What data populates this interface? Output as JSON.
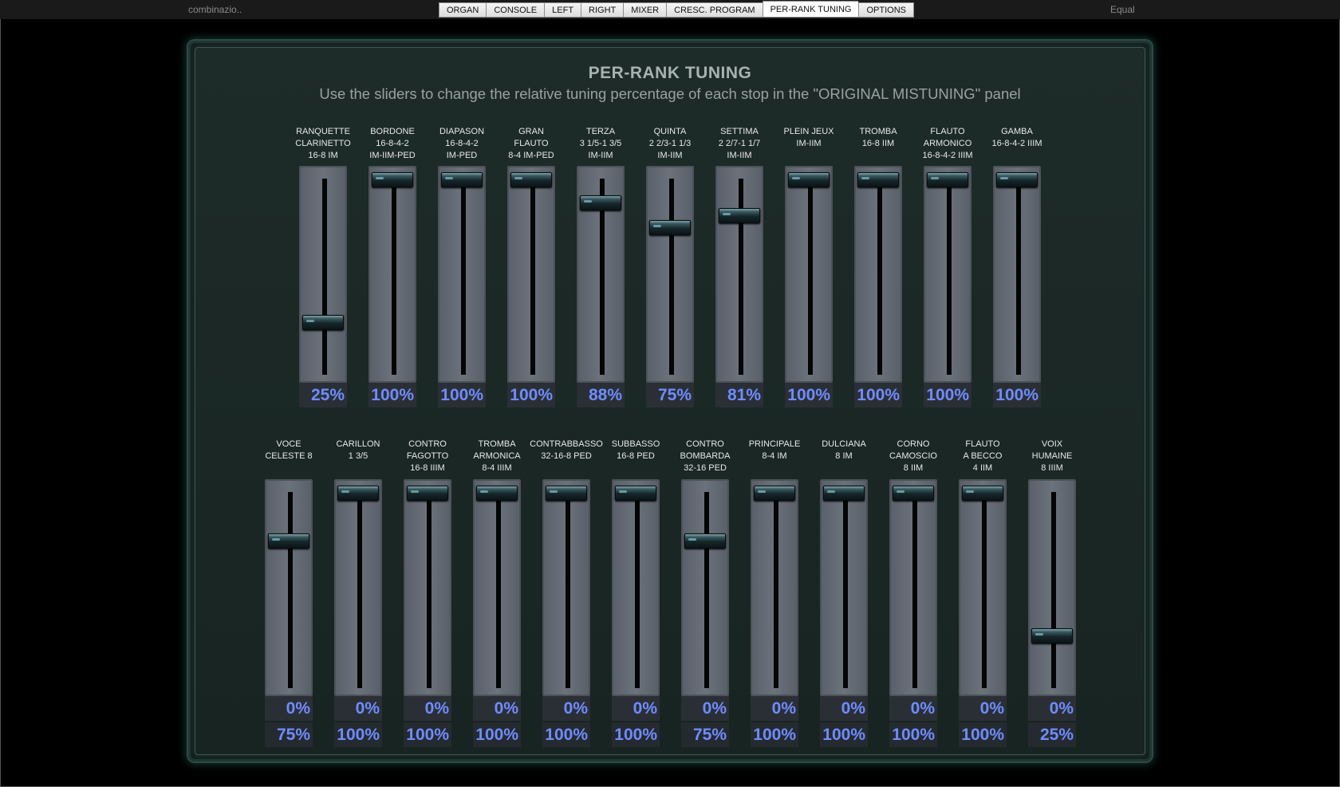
{
  "topbar": {
    "left_label": "combinazio..",
    "right_label": "Equal",
    "tabs": [
      {
        "label": "ORGAN",
        "active": false
      },
      {
        "label": "CONSOLE",
        "active": false
      },
      {
        "label": "LEFT",
        "active": false
      },
      {
        "label": "RIGHT",
        "active": false
      },
      {
        "label": "MIXER",
        "active": false
      },
      {
        "label": "CRESC. PROGRAM",
        "active": false
      },
      {
        "label": "PER-RANK TUNING",
        "active": true
      },
      {
        "label": "OPTIONS",
        "active": false
      }
    ]
  },
  "panel": {
    "title": "PER-RANK TUNING",
    "subtitle": "Use the sliders to change the relative tuning percentage of each stop in the \"ORIGINAL MISTUNING\" panel"
  },
  "row1": [
    {
      "label": [
        "RANQUETTE",
        "CLARINETTO",
        "16-8 IM"
      ],
      "value": "25%",
      "level": 0.25
    },
    {
      "label": [
        "BORDONE",
        "16-8-4-2",
        "IM-IIM-PED"
      ],
      "value": "100%",
      "level": 1.0
    },
    {
      "label": [
        "DIAPASON",
        "16-8-4-2",
        "IM-PED"
      ],
      "value": "100%",
      "level": 1.0
    },
    {
      "label": [
        "GRAN",
        "FLAUTO",
        "8-4 IM-PED"
      ],
      "value": "100%",
      "level": 1.0
    },
    {
      "label": [
        "TERZA",
        "3 1/5-1 3/5",
        "IM-IIM"
      ],
      "value": "88%",
      "level": 0.88
    },
    {
      "label": [
        "QUINTA",
        "2 2/3-1 1/3",
        "IM-IIM"
      ],
      "value": "75%",
      "level": 0.75
    },
    {
      "label": [
        "SETTIMA",
        "2 2/7-1 1/7",
        "IM-IIM"
      ],
      "value": "81%",
      "level": 0.81
    },
    {
      "label": [
        "PLEIN JEUX",
        "IM-IIM"
      ],
      "value": "100%",
      "level": 1.0
    },
    {
      "label": [
        "TROMBA",
        "16-8 IIM"
      ],
      "value": "100%",
      "level": 1.0
    },
    {
      "label": [
        "FLAUTO",
        "ARMONICO",
        "16-8-4-2 IIIM"
      ],
      "value": "100%",
      "level": 1.0
    },
    {
      "label": [
        "GAMBA",
        "16-8-4-2 IIIM"
      ],
      "value": "100%",
      "level": 1.0
    }
  ],
  "row2": [
    {
      "label": [
        "VOCE",
        "CELESTE 8"
      ],
      "value1": "0%",
      "value2": "75%",
      "level": 0.75
    },
    {
      "label": [
        "CARILLON",
        "1 3/5"
      ],
      "value1": "0%",
      "value2": "100%",
      "level": 1.0
    },
    {
      "label": [
        "CONTRO",
        "FAGOTTO",
        "16-8 IIIM"
      ],
      "value1": "0%",
      "value2": "100%",
      "level": 1.0
    },
    {
      "label": [
        "TROMBA",
        "ARMONICA",
        "8-4 IIIM"
      ],
      "value1": "0%",
      "value2": "100%",
      "level": 1.0
    },
    {
      "label": [
        "CONTRABBASSO",
        "32-16-8 PED"
      ],
      "value1": "0%",
      "value2": "100%",
      "level": 1.0
    },
    {
      "label": [
        "SUBBASSO",
        "16-8 PED"
      ],
      "value1": "0%",
      "value2": "100%",
      "level": 1.0
    },
    {
      "label": [
        "CONTRO",
        "BOMBARDA",
        "32-16 PED"
      ],
      "value1": "0%",
      "value2": "75%",
      "level": 0.75
    },
    {
      "label": [
        "PRINCIPALE",
        "8-4 IM"
      ],
      "value1": "0%",
      "value2": "100%",
      "level": 1.0
    },
    {
      "label": [
        "DULCIANA",
        "8 IM"
      ],
      "value1": "0%",
      "value2": "100%",
      "level": 1.0
    },
    {
      "label": [
        "CORNO",
        "CAMOSCIO",
        "8 IIM"
      ],
      "value1": "0%",
      "value2": "100%",
      "level": 1.0
    },
    {
      "label": [
        "FLAUTO",
        "A BECCO",
        "4 IIM"
      ],
      "value1": "0%",
      "value2": "100%",
      "level": 1.0
    },
    {
      "label": [
        "VOIX",
        "HUMAINE",
        "8 IIIM"
      ],
      "value1": "0%",
      "value2": "25%",
      "level": 0.25
    }
  ]
}
